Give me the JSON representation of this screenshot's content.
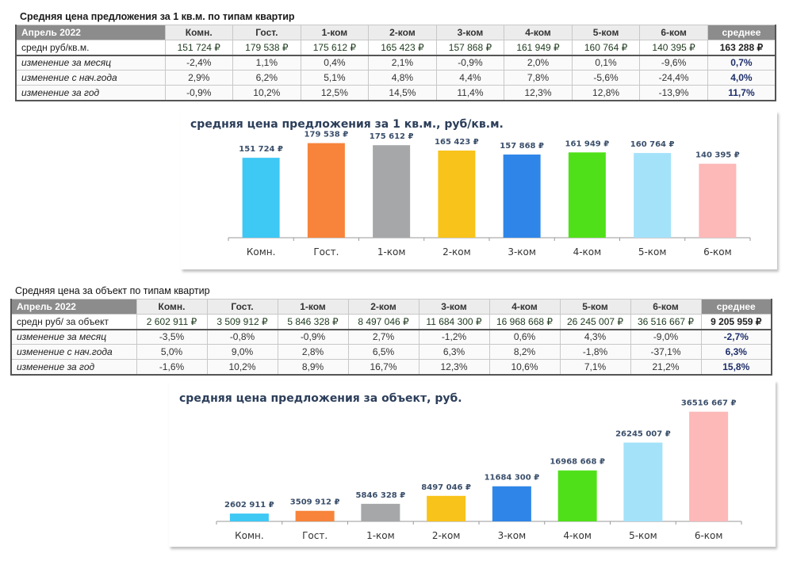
{
  "table1": {
    "title": "Средняя цена предложения за 1 кв.м.  по типам квартир",
    "corner": "Апрель 2022",
    "columns": [
      "Комн.",
      "Гост.",
      "1-ком",
      "2-ком",
      "3-ком",
      "4-ком",
      "5-ком",
      "6-ком",
      "среднее"
    ],
    "rows": [
      {
        "label": "средн руб/кв.м.",
        "values": [
          "151 724 ₽",
          "179 538 ₽",
          "175 612 ₽",
          "165 423 ₽",
          "157 868 ₽",
          "161 949 ₽",
          "160 764 ₽",
          "140 395 ₽",
          "163 288 ₽"
        ]
      },
      {
        "label": "изменение за месяц",
        "values": [
          "-2,4%",
          "1,1%",
          "0,4%",
          "2,1%",
          "-0,9%",
          "2,0%",
          "0,1%",
          "-9,6%",
          "0,7%"
        ]
      },
      {
        "label": "изменение с нач.года",
        "values": [
          "2,9%",
          "6,2%",
          "5,1%",
          "4,8%",
          "4,4%",
          "7,8%",
          "-5,6%",
          "-24,4%",
          "4,0%"
        ]
      },
      {
        "label": "изменение за год",
        "values": [
          "-0,9%",
          "10,2%",
          "12,5%",
          "14,5%",
          "11,4%",
          "12,3%",
          "12,8%",
          "-13,9%",
          "11,7%"
        ]
      }
    ]
  },
  "table2": {
    "title": "Средняя цена за объект по типам квартир",
    "corner": "Апрель 2022",
    "columns": [
      "Комн.",
      "Гост.",
      "1-ком",
      "2-ком",
      "3-ком",
      "4-ком",
      "5-ком",
      "6-ком",
      "среднее"
    ],
    "rows": [
      {
        "label": "средн руб/ за объект",
        "values": [
          "2 602 911 ₽",
          "3 509 912 ₽",
          "5 846 328 ₽",
          "8 497 046 ₽",
          "11 684 300 ₽",
          "16 968 668 ₽",
          "26 245 007 ₽",
          "36 516 667 ₽",
          "9 205 959 ₽"
        ]
      },
      {
        "label": "изменение за месяц",
        "values": [
          "-3,5%",
          "-0,8%",
          "-0,9%",
          "2,7%",
          "-1,2%",
          "0,6%",
          "4,3%",
          "-9,0%",
          "-2,7%"
        ]
      },
      {
        "label": "изменение с нач.года",
        "values": [
          "5,0%",
          "9,0%",
          "2,8%",
          "6,5%",
          "6,3%",
          "8,2%",
          "-1,8%",
          "-37,1%",
          "6,3%"
        ]
      },
      {
        "label": "изменение за год",
        "values": [
          "-1,6%",
          "10,2%",
          "8,9%",
          "16,7%",
          "12,3%",
          "10,6%",
          "7,1%",
          "21,2%",
          "15,8%"
        ]
      }
    ]
  },
  "chart_data": [
    {
      "type": "bar",
      "title": "средняя цена предложения за 1 кв.м., руб/кв.м.",
      "categories": [
        "Комн.",
        "Гост.",
        "1-ком",
        "2-ком",
        "3-ком",
        "4-ком",
        "5-ком",
        "6-ком"
      ],
      "values": [
        151724,
        179538,
        175612,
        165423,
        157868,
        161949,
        160764,
        140395
      ],
      "data_labels": [
        "151 724 ₽",
        "179 538 ₽",
        "175 612 ₽",
        "165 423 ₽",
        "157 868 ₽",
        "161 949 ₽",
        "160 764 ₽",
        "140 395 ₽"
      ],
      "colors": [
        "#3ec8f4",
        "#f7843a",
        "#a5a7a8",
        "#f8c31a",
        "#2f86e8",
        "#50e01a",
        "#a4e2fa",
        "#fdb8b8"
      ],
      "xlabel": "",
      "ylabel": "",
      "ylim": [
        0,
        185000
      ],
      "grid": false,
      "legend": "none"
    },
    {
      "type": "bar",
      "title": "средняя цена предложения за объект, руб.",
      "categories": [
        "Комн.",
        "Гост.",
        "1-ком",
        "2-ком",
        "3-ком",
        "4-ком",
        "5-ком",
        "6-ком"
      ],
      "values": [
        2602911,
        3509912,
        5846328,
        8497046,
        11684300,
        16968668,
        26245007,
        36516667
      ],
      "data_labels": [
        "2602 911 ₽",
        "3509 912 ₽",
        "5846 328 ₽",
        "8497 046 ₽",
        "11684 300 ₽",
        "16968 668 ₽",
        "26245 007 ₽",
        "36516 667 ₽"
      ],
      "colors": [
        "#3ec8f4",
        "#f7843a",
        "#a5a7a8",
        "#f8c31a",
        "#2f86e8",
        "#50e01a",
        "#a4e2fa",
        "#fdb8b8"
      ],
      "xlabel": "",
      "ylabel": "",
      "ylim": [
        0,
        38000000
      ],
      "grid": false,
      "legend": "none"
    }
  ]
}
